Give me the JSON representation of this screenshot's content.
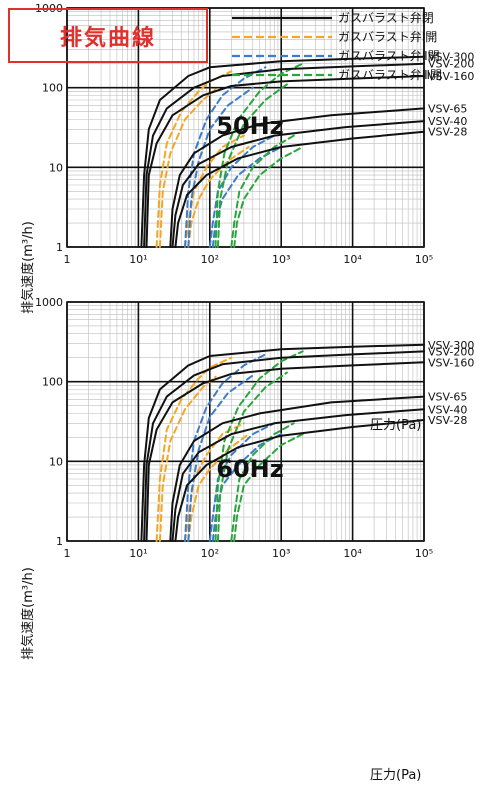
{
  "header": {
    "title": "排気曲線",
    "accent_color": "#e0312d"
  },
  "legend": [
    {
      "label": "ガスバラスト弁閉",
      "color": "#111111",
      "dash": "solid"
    },
    {
      "label": "ガスバラスト弁Ⅰ開",
      "color": "#f5a623",
      "dash": "dashed"
    },
    {
      "label": "ガスバラスト弁Ⅱ開",
      "color": "#3d7cc9",
      "dash": "dashed"
    },
    {
      "label": "ガスバラスト弁Ⅲ開",
      "color": "#2aa53c",
      "dash": "dashed"
    }
  ],
  "chart_data": [
    {
      "type": "line",
      "title": "50Hz",
      "xlabel": "圧力(Pa)",
      "ylabel": "排気速度(m³/h)",
      "xscale": "log",
      "yscale": "log",
      "xlim": [
        1,
        100000
      ],
      "ylim": [
        1,
        1000
      ],
      "x_ticks": [
        "1",
        "10¹",
        "10²",
        "10³",
        "10⁴",
        "10⁵"
      ],
      "y_ticks": [
        "1",
        "10",
        "100",
        "1000"
      ],
      "grid": true,
      "series": [
        {
          "name": "VSV-300",
          "mode": "弁閉",
          "x": [
            11,
            12,
            14,
            20,
            50,
            100,
            1000,
            10000,
            100000
          ],
          "y": [
            1,
            8,
            30,
            70,
            140,
            180,
            215,
            230,
            245
          ]
        },
        {
          "name": "VSV-200",
          "mode": "弁閉",
          "x": [
            12,
            13,
            16,
            25,
            60,
            150,
            1000,
            10000,
            100000
          ],
          "y": [
            1,
            8,
            25,
            55,
            100,
            140,
            170,
            185,
            200
          ]
        },
        {
          "name": "VSV-160",
          "mode": "弁閉",
          "x": [
            13,
            14,
            18,
            30,
            80,
            200,
            1000,
            10000,
            100000
          ],
          "y": [
            1,
            8,
            20,
            45,
            80,
            105,
            120,
            130,
            140
          ]
        },
        {
          "name": "VSV-65",
          "mode": "弁閉",
          "x": [
            28,
            30,
            38,
            60,
            150,
            500,
            5000,
            100000
          ],
          "y": [
            1,
            3,
            8,
            15,
            25,
            35,
            45,
            55
          ]
        },
        {
          "name": "VSV-40",
          "mode": "弁閉",
          "x": [
            30,
            33,
            42,
            70,
            200,
            800,
            8000,
            100000
          ],
          "y": [
            1,
            2.5,
            6,
            11,
            18,
            25,
            32,
            38
          ]
        },
        {
          "name": "VSV-28",
          "mode": "弁閉",
          "x": [
            33,
            36,
            48,
            90,
            250,
            1000,
            10000,
            100000
          ],
          "y": [
            1,
            2,
            4.5,
            8,
            13,
            18,
            23,
            28
          ]
        },
        {
          "name": "VSV-300",
          "mode": "弁Ⅰ開",
          "x": [
            18,
            20,
            25,
            40,
            70,
            100,
            200
          ],
          "y": [
            1,
            6,
            20,
            50,
            90,
            120,
            160
          ]
        },
        {
          "name": "VSV-200",
          "mode": "弁Ⅰ開",
          "x": [
            20,
            22,
            28,
            45,
            80,
            120
          ],
          "y": [
            1,
            5,
            15,
            40,
            70,
            95
          ]
        },
        {
          "name": "VSV-65",
          "mode": "弁Ⅰ開",
          "x": [
            45,
            50,
            60,
            90,
            150,
            300
          ],
          "y": [
            1,
            2,
            5,
            10,
            18,
            25
          ]
        },
        {
          "name": "VSV-40",
          "mode": "弁Ⅰ開",
          "x": [
            50,
            55,
            70,
            100,
            180,
            350
          ],
          "y": [
            1,
            2,
            4,
            7,
            12,
            18
          ]
        },
        {
          "name": "VSV-300",
          "mode": "弁Ⅱ開",
          "x": [
            45,
            50,
            60,
            90,
            150,
            300,
            600
          ],
          "y": [
            1,
            5,
            15,
            40,
            80,
            130,
            180
          ]
        },
        {
          "name": "VSV-200",
          "mode": "弁Ⅱ開",
          "x": [
            50,
            55,
            70,
            100,
            180,
            400
          ],
          "y": [
            1,
            4,
            12,
            30,
            60,
            100
          ]
        },
        {
          "name": "VSV-65",
          "mode": "弁Ⅱ開",
          "x": [
            100,
            110,
            130,
            200,
            400,
            800
          ],
          "y": [
            1,
            2,
            5,
            10,
            18,
            25
          ]
        },
        {
          "name": "VSV-40",
          "mode": "弁Ⅱ開",
          "x": [
            110,
            120,
            150,
            250,
            500,
            1000
          ],
          "y": [
            1,
            2,
            4,
            8,
            13,
            18
          ]
        },
        {
          "name": "VSV-300",
          "mode": "弁Ⅲ開",
          "x": [
            120,
            130,
            160,
            250,
            500,
            1000,
            2000
          ],
          "y": [
            1,
            5,
            15,
            40,
            90,
            150,
            200
          ]
        },
        {
          "name": "VSV-200",
          "mode": "弁Ⅲ開",
          "x": [
            130,
            140,
            180,
            300,
            600,
            1200
          ],
          "y": [
            1,
            4,
            12,
            35,
            70,
            110
          ]
        },
        {
          "name": "VSV-65",
          "mode": "弁Ⅲ開",
          "x": [
            200,
            220,
            260,
            400,
            800,
            1500
          ],
          "y": [
            1,
            2,
            5,
            10,
            18,
            25
          ]
        },
        {
          "name": "VSV-40",
          "mode": "弁Ⅲ開",
          "x": [
            220,
            240,
            300,
            500,
            1000,
            2000
          ],
          "y": [
            1,
            2,
            4,
            8,
            13,
            18
          ]
        }
      ]
    },
    {
      "type": "line",
      "title": "60Hz",
      "xlabel": "圧力(Pa)",
      "ylabel": "排気速度(m³/h)",
      "xscale": "log",
      "yscale": "log",
      "xlim": [
        1,
        100000
      ],
      "ylim": [
        1,
        1000
      ],
      "x_ticks": [
        "1",
        "10¹",
        "10²",
        "10³",
        "10⁴",
        "10⁵"
      ],
      "y_ticks": [
        "1",
        "10",
        "100",
        "1000"
      ],
      "grid": true,
      "series": [
        {
          "name": "VSV-300",
          "mode": "弁閉",
          "x": [
            11,
            12,
            14,
            20,
            50,
            100,
            1000,
            10000,
            100000
          ],
          "y": [
            1,
            9,
            35,
            80,
            160,
            210,
            255,
            275,
            290
          ]
        },
        {
          "name": "VSV-200",
          "mode": "弁閉",
          "x": [
            12,
            13,
            16,
            25,
            60,
            150,
            1000,
            10000,
            100000
          ],
          "y": [
            1,
            9,
            30,
            65,
            120,
            165,
            200,
            220,
            240
          ]
        },
        {
          "name": "VSV-160",
          "mode": "弁閉",
          "x": [
            13,
            14,
            18,
            30,
            80,
            200,
            1000,
            10000,
            100000
          ],
          "y": [
            1,
            9,
            25,
            55,
            95,
            125,
            145,
            160,
            175
          ]
        },
        {
          "name": "VSV-65",
          "mode": "弁閉",
          "x": [
            28,
            30,
            38,
            60,
            150,
            500,
            5000,
            100000
          ],
          "y": [
            1,
            3,
            9,
            18,
            30,
            40,
            55,
            65
          ]
        },
        {
          "name": "VSV-40",
          "mode": "弁閉",
          "x": [
            30,
            33,
            42,
            70,
            200,
            800,
            8000,
            100000
          ],
          "y": [
            1,
            2.5,
            7,
            13,
            22,
            30,
            38,
            45
          ]
        },
        {
          "name": "VSV-28",
          "mode": "弁閉",
          "x": [
            33,
            36,
            48,
            90,
            250,
            1000,
            10000,
            100000
          ],
          "y": [
            1,
            2,
            5,
            9,
            15,
            21,
            27,
            33
          ]
        },
        {
          "name": "VSV-300",
          "mode": "弁Ⅰ開",
          "x": [
            18,
            20,
            25,
            40,
            70,
            100,
            200
          ],
          "y": [
            1,
            6,
            25,
            60,
            110,
            150,
            200
          ]
        },
        {
          "name": "VSV-200",
          "mode": "弁Ⅰ開",
          "x": [
            20,
            22,
            28,
            45,
            80,
            120
          ],
          "y": [
            1,
            5,
            18,
            45,
            85,
            115
          ]
        },
        {
          "name": "VSV-65",
          "mode": "弁Ⅰ開",
          "x": [
            45,
            50,
            60,
            90,
            150,
            300
          ],
          "y": [
            1,
            2,
            6,
            12,
            22,
            30
          ]
        },
        {
          "name": "VSV-40",
          "mode": "弁Ⅰ開",
          "x": [
            50,
            55,
            70,
            100,
            180,
            350
          ],
          "y": [
            1,
            2,
            5,
            8,
            14,
            22
          ]
        },
        {
          "name": "VSV-300",
          "mode": "弁Ⅱ開",
          "x": [
            45,
            50,
            60,
            90,
            150,
            300,
            600
          ],
          "y": [
            1,
            5,
            18,
            48,
            95,
            160,
            220
          ]
        },
        {
          "name": "VSV-200",
          "mode": "弁Ⅱ開",
          "x": [
            50,
            55,
            70,
            100,
            180,
            400
          ],
          "y": [
            1,
            4,
            14,
            36,
            72,
            120
          ]
        },
        {
          "name": "VSV-65",
          "mode": "弁Ⅱ開",
          "x": [
            100,
            110,
            130,
            200,
            400,
            800
          ],
          "y": [
            1,
            2,
            6,
            12,
            22,
            30
          ]
        },
        {
          "name": "VSV-40",
          "mode": "弁Ⅱ開",
          "x": [
            110,
            120,
            150,
            250,
            500,
            1000
          ],
          "y": [
            1,
            2,
            5,
            9,
            16,
            22
          ]
        },
        {
          "name": "VSV-300",
          "mode": "弁Ⅲ開",
          "x": [
            120,
            130,
            160,
            250,
            500,
            1000,
            2000
          ],
          "y": [
            1,
            5,
            18,
            48,
            110,
            180,
            240
          ]
        },
        {
          "name": "VSV-200",
          "mode": "弁Ⅲ開",
          "x": [
            130,
            140,
            180,
            300,
            600,
            1200
          ],
          "y": [
            1,
            4,
            14,
            42,
            85,
            130
          ]
        },
        {
          "name": "VSV-65",
          "mode": "弁Ⅲ開",
          "x": [
            200,
            220,
            260,
            400,
            800,
            1500
          ],
          "y": [
            1,
            2,
            6,
            12,
            22,
            30
          ]
        },
        {
          "name": "VSV-40",
          "mode": "弁Ⅲ開",
          "x": [
            220,
            240,
            300,
            500,
            1000,
            2000
          ],
          "y": [
            1,
            2,
            5,
            9,
            16,
            22
          ]
        }
      ]
    }
  ]
}
